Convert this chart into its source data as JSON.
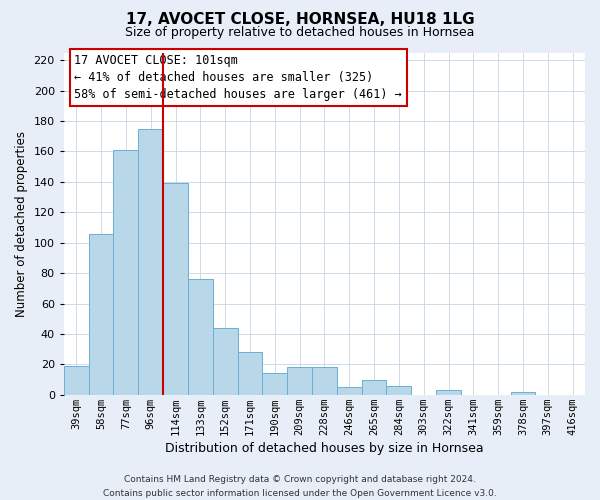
{
  "title": "17, AVOCET CLOSE, HORNSEA, HU18 1LG",
  "subtitle": "Size of property relative to detached houses in Hornsea",
  "xlabel": "Distribution of detached houses by size in Hornsea",
  "ylabel": "Number of detached properties",
  "categories": [
    "39sqm",
    "58sqm",
    "77sqm",
    "96sqm",
    "114sqm",
    "133sqm",
    "152sqm",
    "171sqm",
    "190sqm",
    "209sqm",
    "228sqm",
    "246sqm",
    "265sqm",
    "284sqm",
    "303sqm",
    "322sqm",
    "341sqm",
    "359sqm",
    "378sqm",
    "397sqm",
    "416sqm"
  ],
  "values": [
    19,
    106,
    161,
    175,
    139,
    76,
    44,
    28,
    14,
    18,
    18,
    5,
    10,
    6,
    0,
    3,
    0,
    0,
    2,
    0,
    0
  ],
  "bar_color": "#b8d8ea",
  "bar_edge_color": "#6aafd6",
  "vline_x_idx": 3.5,
  "vline_color": "#cc0000",
  "annotation_line1": "17 AVOCET CLOSE: 101sqm",
  "annotation_line2": "← 41% of detached houses are smaller (325)",
  "annotation_line3": "58% of semi-detached houses are larger (461) →",
  "ylim": [
    0,
    225
  ],
  "yticks": [
    0,
    20,
    40,
    60,
    80,
    100,
    120,
    140,
    160,
    180,
    200,
    220
  ],
  "footer1": "Contains HM Land Registry data © Crown copyright and database right 2024.",
  "footer2": "Contains public sector information licensed under the Open Government Licence v3.0.",
  "bg_color": "#e8eef8",
  "plot_bg_color": "#ffffff",
  "title_fontsize": 11,
  "subtitle_fontsize": 9,
  "ylabel_fontsize": 8.5,
  "xlabel_fontsize": 9,
  "tick_fontsize": 8,
  "xtick_fontsize": 7.5,
  "annotation_fontsize": 8.5,
  "footer_fontsize": 6.5
}
